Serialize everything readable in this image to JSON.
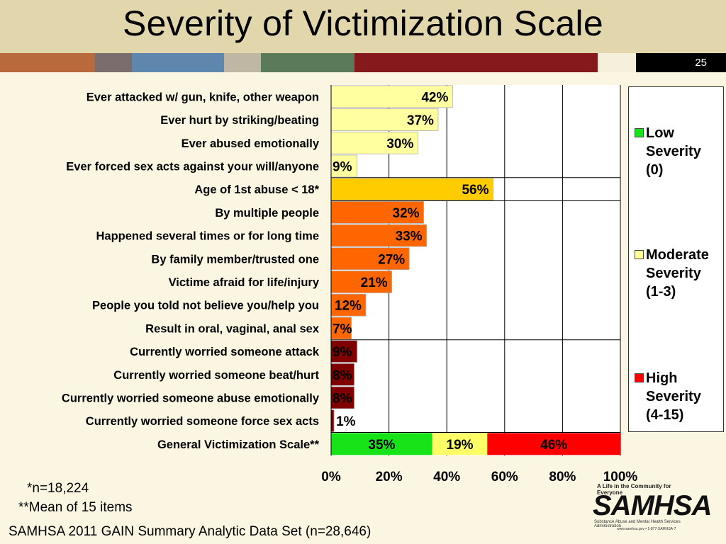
{
  "slide": {
    "title": "Severity of Victimization Scale",
    "number": "25",
    "stripe_colors": [
      "#b86a3d",
      "#7b6c6e",
      "#5f87ad",
      "#c0b6a4",
      "#5b7a59",
      "#85191c",
      "#f5f0dc",
      "#000000"
    ]
  },
  "notes": {
    "n": "*n=18,224",
    "mean": "**Mean of 15 items",
    "source": "SAMHSA 2011 GAIN Summary Analytic Data Set (n=28,646)"
  },
  "logo": {
    "tagline": "A Life in the Community for Everyone",
    "name": "SAMHSA",
    "subtitle": "Substance Abuse and Mental Health Services Administration",
    "url": "www.samhsa.gov • 1-877-SAMHSA-7"
  },
  "chart_data": {
    "type": "bar",
    "orientation": "horizontal",
    "title": "Severity of Victimization Scale",
    "xlim": [
      0,
      100
    ],
    "x_ticks": [
      "0%",
      "20%",
      "40%",
      "60%",
      "80%",
      "100%"
    ],
    "grid": true,
    "legend_position": "right",
    "legend": [
      {
        "label": "Low\nSeverity\n(0)",
        "color": "#16e418"
      },
      {
        "label": "Moderate\nSeverity\n(1-3)",
        "color": "#ffff99"
      },
      {
        "label": "High\nSeverity\n(4-15)",
        "color": "#ff0000"
      }
    ],
    "categories": [
      {
        "label": "Ever attacked w/ gun, knife, other weapon",
        "value": 42,
        "display": "42%",
        "color": "#ffffa0"
      },
      {
        "label": "Ever hurt by striking/beating",
        "value": 37,
        "display": "37%",
        "color": "#ffffa0"
      },
      {
        "label": "Ever abused emotionally",
        "value": 30,
        "display": "30%",
        "color": "#ffffa0"
      },
      {
        "label": "Ever forced sex acts against your will/anyone",
        "value": 9,
        "display": "9%",
        "color": "#ffffa0"
      },
      {
        "label": "Age of 1st abuse < 18*",
        "value": 56,
        "display": "56%",
        "color": "#ffcc00"
      },
      {
        "label": "By multiple people",
        "value": 32,
        "display": "32%",
        "color": "#ff6600"
      },
      {
        "label": "Happened several times or for long time",
        "value": 33,
        "display": "33%",
        "color": "#ff6600"
      },
      {
        "label": "By family member/trusted one",
        "value": 27,
        "display": "27%",
        "color": "#ff6600"
      },
      {
        "label": "Victime afraid for life/injury",
        "value": 21,
        "display": "21%",
        "color": "#ff6600"
      },
      {
        "label": "People you told not believe you/help you",
        "value": 12,
        "display": "12%",
        "color": "#ff6600"
      },
      {
        "label": "Result in oral, vaginal, anal sex",
        "value": 7,
        "display": "7%",
        "color": "#ff6600"
      },
      {
        "label": "Currently worried someone attack",
        "value": 9,
        "display": "9%",
        "color": "#800000"
      },
      {
        "label": "Currently worried someone beat/hurt",
        "value": 8,
        "display": "8%",
        "color": "#800000"
      },
      {
        "label": "Currently worried someone abuse emotionally",
        "value": 8,
        "display": "8%",
        "color": "#800000"
      },
      {
        "label": "Currently worried someone force sex acts",
        "value": 1,
        "display": "1%",
        "color": "#800000"
      }
    ],
    "stacked_row": {
      "label": "General Victimization Scale**",
      "segments": [
        {
          "name": "Low Severity (0)",
          "value": 35,
          "display": "35%",
          "color": "#16e418"
        },
        {
          "name": "Moderate Severity (1-3)",
          "value": 19,
          "display": "19%",
          "color": "#ffff66"
        },
        {
          "name": "High Severity (4-15)",
          "value": 46,
          "display": "46%",
          "color": "#ff0000"
        }
      ]
    }
  }
}
